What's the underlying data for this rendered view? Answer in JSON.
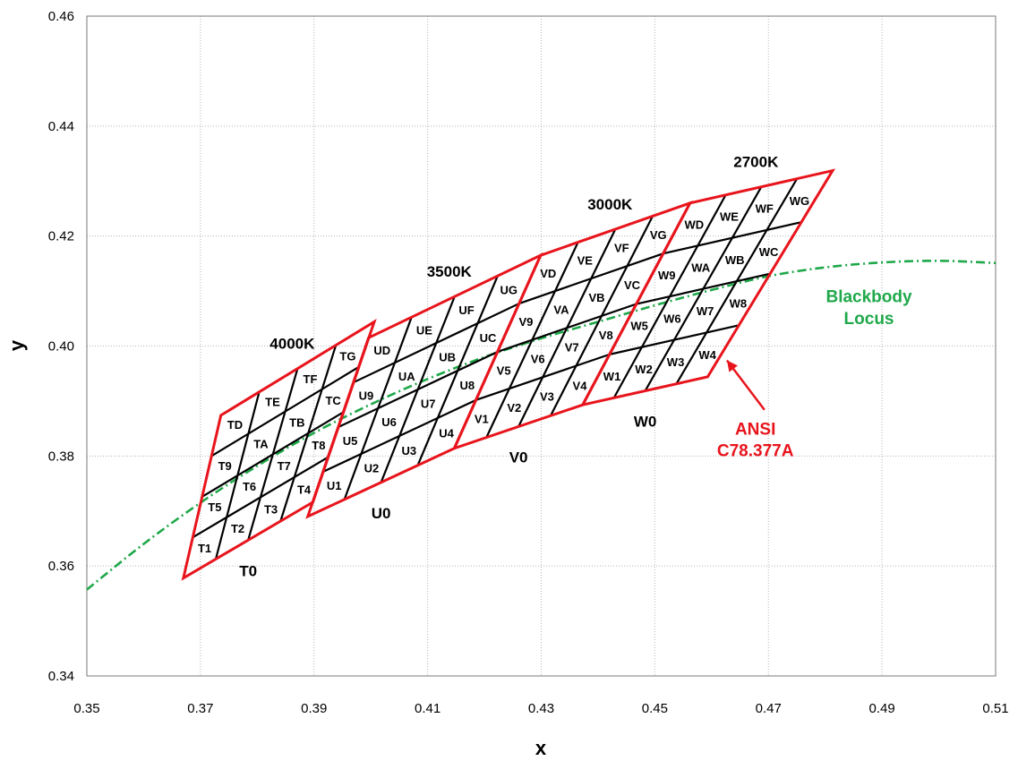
{
  "chart_data": {
    "type": "scatter",
    "title": "",
    "xlabel": "x",
    "ylabel": "y",
    "xlim": [
      0.35,
      0.51
    ],
    "ylim": [
      0.34,
      0.46
    ],
    "x_ticks": [
      "0.35",
      "0.37",
      "0.39",
      "0.41",
      "0.43",
      "0.45",
      "0.47",
      "0.49",
      "0.51"
    ],
    "y_ticks": [
      "0.34",
      "0.36",
      "0.38",
      "0.40",
      "0.42",
      "0.44",
      "0.46"
    ],
    "grid": true,
    "colors": {
      "quadrangle_outline": "#e8141c",
      "sub_bin_grid": "#000000",
      "blackbody_locus": "#1fa84a",
      "ansi_label": "#e8141c",
      "locus_label": "#1fa84a"
    },
    "quadrangles": [
      {
        "name": "T",
        "cct": "4000K",
        "row0_label": "T0",
        "corners": {
          "bl": [
            0.367,
            0.3578
          ],
          "br": [
            0.3898,
            0.3716
          ],
          "tr": [
            0.4006,
            0.4044
          ],
          "tl": [
            0.3736,
            0.3874
          ]
        },
        "bins": [
          "T1",
          "T2",
          "T3",
          "T4",
          "T5",
          "T6",
          "T7",
          "T8",
          "T9",
          "TA",
          "TB",
          "TC",
          "TD",
          "TE",
          "TF",
          "TG"
        ]
      },
      {
        "name": "U",
        "cct": "3500K",
        "row0_label": "U0",
        "corners": {
          "bl": [
            0.3889,
            0.369
          ],
          "br": [
            0.4147,
            0.3814
          ],
          "tr": [
            0.4299,
            0.4165
          ],
          "tl": [
            0.3996,
            0.4015
          ]
        },
        "bins": [
          "U1",
          "U2",
          "U3",
          "U4",
          "U5",
          "U6",
          "U7",
          "U8",
          "U9",
          "UA",
          "UB",
          "UC",
          "UD",
          "UE",
          "UF",
          "UG"
        ]
      },
      {
        "name": "V",
        "cct": "3000K",
        "row0_label": "V0",
        "corners": {
          "bl": [
            0.4147,
            0.3814
          ],
          "br": [
            0.4373,
            0.3893
          ],
          "tr": [
            0.4562,
            0.426
          ],
          "tl": [
            0.4299,
            0.4165
          ]
        },
        "bins": [
          "V1",
          "V2",
          "V3",
          "V4",
          "V5",
          "V6",
          "V7",
          "V8",
          "V9",
          "VA",
          "VB",
          "VC",
          "VD",
          "VE",
          "VF",
          "VG"
        ]
      },
      {
        "name": "W",
        "cct": "2700K",
        "row0_label": "W0",
        "corners": {
          "bl": [
            0.4373,
            0.3893
          ],
          "br": [
            0.4593,
            0.3944
          ],
          "tr": [
            0.4813,
            0.4319
          ],
          "tl": [
            0.4562,
            0.426
          ]
        },
        "bins": [
          "W1",
          "W2",
          "W3",
          "W4",
          "W5",
          "W6",
          "W7",
          "W8",
          "W9",
          "WA",
          "WB",
          "WC",
          "WD",
          "WE",
          "WF",
          "WG"
        ]
      }
    ],
    "blackbody_locus": {
      "name": "Blackbody Locus",
      "x": [
        0.35,
        0.36,
        0.37,
        0.38,
        0.39,
        0.4,
        0.41,
        0.42,
        0.43,
        0.44,
        0.45,
        0.46,
        0.47,
        0.48,
        0.49,
        0.5,
        0.51
      ],
      "y": [
        0.3557,
        0.364,
        0.3715,
        0.3782,
        0.3842,
        0.3894,
        0.394,
        0.398,
        0.4014,
        0.4044,
        0.4074,
        0.4102,
        0.4127,
        0.4143,
        0.4152,
        0.4155,
        0.4151
      ]
    },
    "annotations": {
      "locus_label_line1": "Blackbody",
      "locus_label_line2": "Locus",
      "ansi_label_line1": "ANSI",
      "ansi_label_line2": "C78.377A"
    }
  }
}
